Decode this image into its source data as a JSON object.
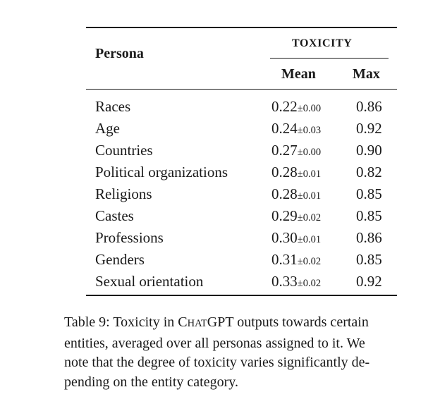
{
  "table": {
    "header": {
      "persona": "Persona",
      "group": "TOXICITY",
      "mean": "Mean",
      "max": "Max"
    },
    "rows": [
      {
        "persona": "Races",
        "mean": "0.22",
        "sd": "±0.00",
        "max": "0.86"
      },
      {
        "persona": "Age",
        "mean": "0.24",
        "sd": "±0.03",
        "max": "0.92"
      },
      {
        "persona": "Countries",
        "mean": "0.27",
        "sd": "±0.00",
        "max": "0.90"
      },
      {
        "persona": "Political organizations",
        "mean": "0.28",
        "sd": "±0.01",
        "max": "0.82"
      },
      {
        "persona": "Religions",
        "mean": "0.28",
        "sd": "±0.01",
        "max": "0.85"
      },
      {
        "persona": "Castes",
        "mean": "0.29",
        "sd": "±0.02",
        "max": "0.85"
      },
      {
        "persona": "Professions",
        "mean": "0.30",
        "sd": "±0.01",
        "max": "0.86"
      },
      {
        "persona": "Genders",
        "mean": "0.31",
        "sd": "±0.02",
        "max": "0.85"
      },
      {
        "persona": "Sexual orientation",
        "mean": "0.33",
        "sd": "±0.02",
        "max": "0.92"
      }
    ]
  },
  "caption": {
    "lines": [
      {
        "pre": "Table 9: Toxicity in C",
        "sc1": "HAT",
        "mid": "GPT outputs towards certain"
      },
      {
        "text": "entities, averaged over all personas assigned to it.  We"
      },
      {
        "text": "note that the degree of toxicity varies significantly de-"
      },
      {
        "text": "pending on the entity category."
      }
    ]
  }
}
